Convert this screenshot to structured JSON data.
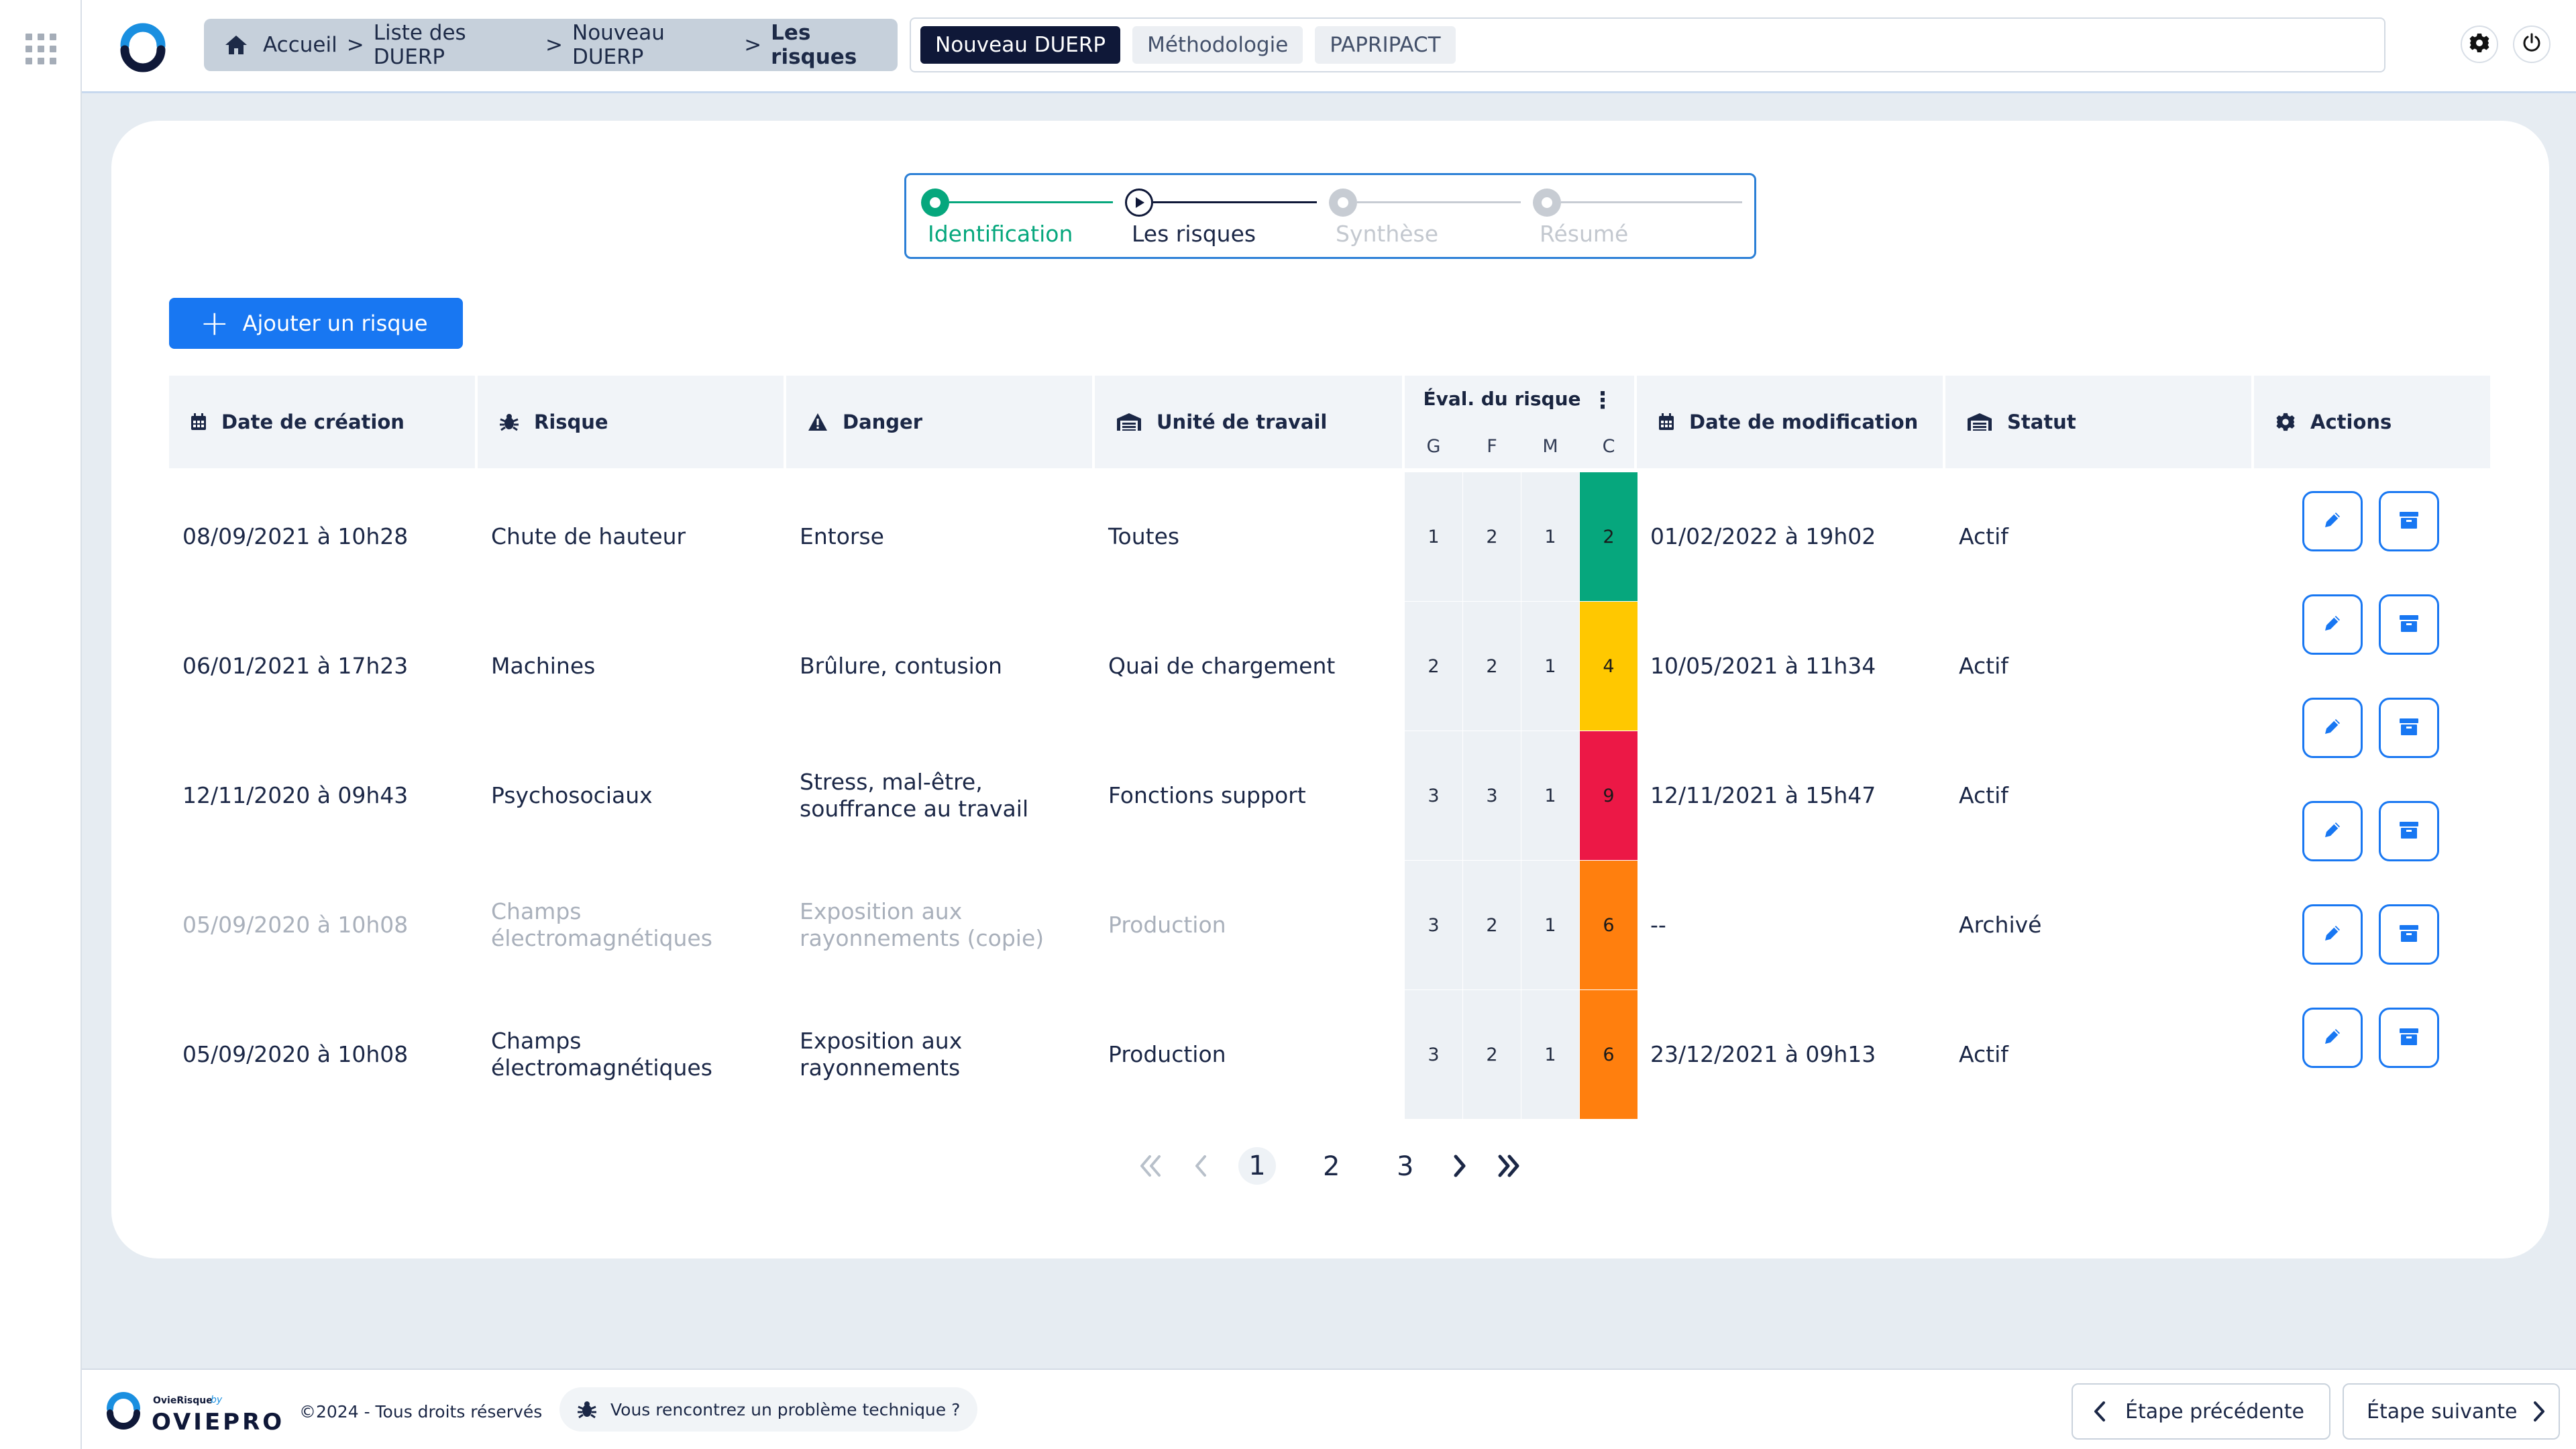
{
  "app": {
    "name": "OvieRisque",
    "by": "by",
    "brand": "OVIEPRO"
  },
  "breadcrumb": {
    "items": [
      "Accueil",
      "Liste des DUERP",
      "Nouveau DUERP"
    ],
    "current": "Les risques",
    "separator": ">"
  },
  "tabs": [
    {
      "label": "Nouveau DUERP",
      "active": true
    },
    {
      "label": "Méthodologie",
      "active": false
    },
    {
      "label": "PAPRIPACT",
      "active": false
    }
  ],
  "stepper": [
    {
      "label": "Identification",
      "state": "done"
    },
    {
      "label": "Les risques",
      "state": "current"
    },
    {
      "label": "Synthèse",
      "state": "pending"
    },
    {
      "label": "Résumé",
      "state": "pending"
    }
  ],
  "add_button": {
    "label": "Ajouter un risque"
  },
  "table": {
    "headers": {
      "date_creation": "Date de création",
      "risque": "Risque",
      "danger": "Danger",
      "unite": "Unité de travail",
      "eval": "Éval. du risque",
      "eval_sub": [
        "G",
        "F",
        "M",
        "C"
      ],
      "date_modif": "Date de modification",
      "statut": "Statut",
      "actions": "Actions"
    },
    "rows": [
      {
        "date_creation": "08/09/2021 à 10h28",
        "risque": "Chute de hauteur",
        "danger": "Entorse",
        "unite": "Toutes",
        "g": "1",
        "f": "2",
        "m": "1",
        "c": "2",
        "c_color": "#06a77d",
        "date_modif": "01/02/2022 à 19h02",
        "statut": "Actif",
        "archived": false
      },
      {
        "date_creation": "06/01/2021 à 17h23",
        "risque": "Machines",
        "danger": "Brûlure, contusion",
        "unite": "Quai de chargement",
        "g": "2",
        "f": "2",
        "m": "1",
        "c": "4",
        "c_color": "#ffc800",
        "date_modif": "10/05/2021 à 11h34",
        "statut": "Actif",
        "archived": false
      },
      {
        "date_creation": "12/11/2020 à 09h43",
        "risque": "Psychosociaux",
        "danger": "Stress, mal-être, souffrance au travail",
        "unite": "Fonctions support",
        "g": "3",
        "f": "3",
        "m": "1",
        "c": "9",
        "c_color": "#ec1846",
        "date_modif": "12/11/2021 à 15h47",
        "statut": "Actif",
        "archived": false
      },
      {
        "date_creation": "05/09/2020 à 10h08",
        "risque": "Champs électromagnétiques",
        "danger": "Exposition aux rayonnements (copie)",
        "unite": "Production",
        "g": "3",
        "f": "2",
        "m": "1",
        "c": "6",
        "c_color": "#ff7f0e",
        "date_modif": "--",
        "statut": "Archivé",
        "archived": true
      },
      {
        "date_creation": "05/09/2020 à 10h08",
        "risque": "Champs électromagnétiques",
        "danger": "Exposition aux rayonnements",
        "unite": "Production",
        "g": "3",
        "f": "2",
        "m": "1",
        "c": "6",
        "c_color": "#ff7f0e",
        "date_modif": "23/12/2021 à 09h13",
        "statut": "Actif",
        "archived": false
      }
    ]
  },
  "pagination": {
    "pages": [
      "1",
      "2",
      "3"
    ],
    "current": "1"
  },
  "footer": {
    "copyright": "©2024 - Tous droits réservés",
    "report": "Vous rencontrez un problème technique ?",
    "prev": "Étape précédente",
    "next": "Étape suivante"
  },
  "colors": {
    "primary": "#1877f2",
    "navy": "#0f1838",
    "green": "#06a77d"
  }
}
